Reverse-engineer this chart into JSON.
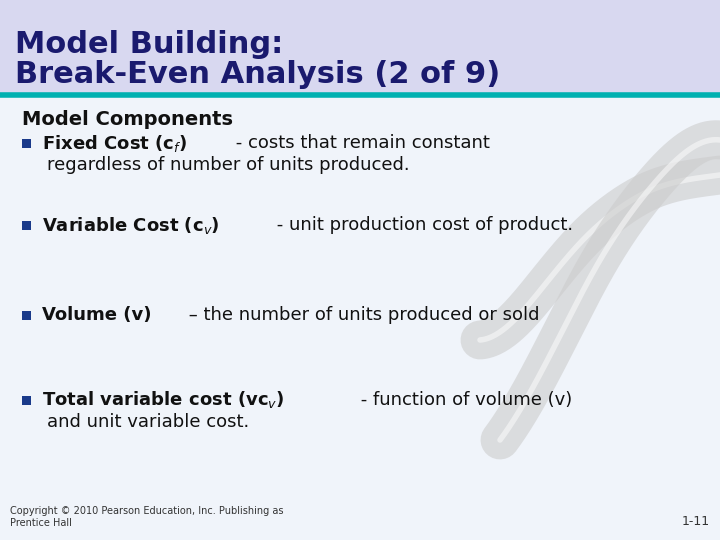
{
  "title_line1": "Model Building:",
  "title_line2": "Break-Even Analysis (2 of 9)",
  "title_bg_color": "#d8d8f0",
  "title_text_color": "#1a1a6e",
  "content_bg_color": "#f0f4fa",
  "divider_color": "#00b0b0",
  "section_header": "Model Components",
  "bullet_color": "#1a3a8a",
  "bullet_items": [
    {
      "bold_part": "Fixed Cost (c$_f$)",
      "normal_part": " - costs that remain constant\n    regardless of number of units produced."
    },
    {
      "bold_part": "Variable Cost (c$_v$)",
      "normal_part": " - unit production cost of product."
    },
    {
      "bold_part": "Volume (v)",
      "normal_part": " – the number of units produced or sold"
    },
    {
      "bold_part": "Total variable cost (vc$_v$)",
      "normal_part": " - function of volume (v)\n    and unit variable cost."
    }
  ],
  "footer_left": "Copyright © 2010 Pearson Education, Inc. Publishing as\nPrentice Hall",
  "footer_right": "1-11",
  "road_color": "#cccccc"
}
